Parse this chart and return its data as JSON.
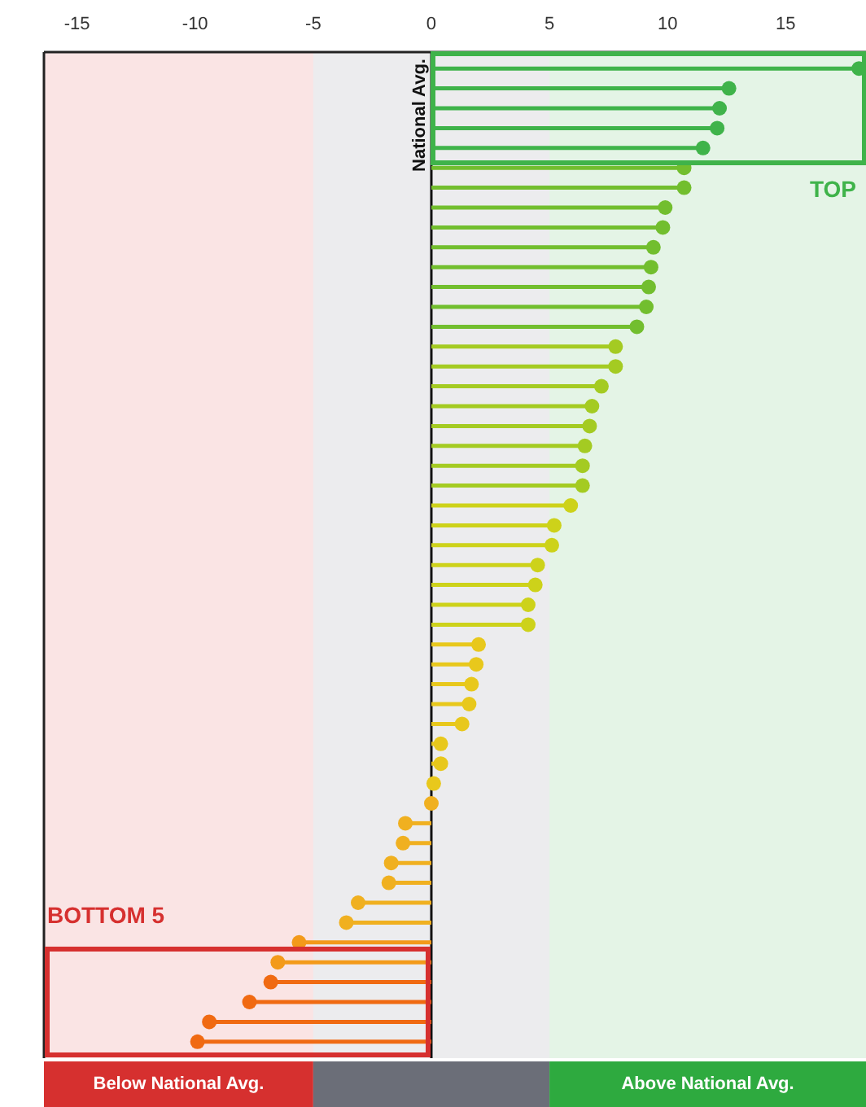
{
  "chart_data": {
    "type": "lollipop",
    "orientation": "horizontal",
    "categories": [
      null,
      null,
      null,
      null,
      null,
      null,
      null,
      null,
      null,
      null,
      null,
      null,
      null,
      null,
      null,
      null,
      null,
      null,
      null,
      null,
      null,
      null,
      null,
      null,
      null,
      null,
      null,
      null,
      null,
      null,
      null,
      null,
      null,
      null,
      null,
      null,
      null,
      null,
      null,
      null,
      null,
      null,
      null,
      null,
      null,
      null,
      null,
      null,
      null,
      null
    ],
    "values": [
      18.1,
      12.6,
      12.2,
      12.1,
      11.5,
      10.7,
      10.7,
      9.9,
      9.8,
      9.4,
      9.3,
      9.2,
      9.1,
      8.7,
      7.8,
      7.8,
      7.2,
      6.8,
      6.7,
      6.5,
      6.4,
      6.4,
      5.9,
      5.2,
      5.1,
      4.5,
      4.4,
      4.1,
      4.1,
      2.0,
      1.9,
      1.7,
      1.6,
      1.3,
      0.4,
      0.4,
      0.1,
      0,
      -1.1,
      -1.2,
      -1.7,
      -1.8,
      -3.1,
      -3.6,
      -5.6,
      -6.5,
      -6.8,
      -7.7,
      -9.4,
      -9.9
    ],
    "colors": [
      "#3fb34a",
      "#3fb34a",
      "#3fb34a",
      "#3fb34a",
      "#3fb34a",
      "#72be2e",
      "#72be2e",
      "#72be2e",
      "#72be2e",
      "#72be2e",
      "#72be2e",
      "#72be2e",
      "#72be2e",
      "#72be2e",
      "#a4cb22",
      "#a4cb22",
      "#a4cb22",
      "#a4cb22",
      "#a4cb22",
      "#a4cb22",
      "#a4cb22",
      "#a4cb22",
      "#cdd21a",
      "#cdd21a",
      "#cdd21a",
      "#cdd21a",
      "#cdd21a",
      "#cdd21a",
      "#cdd21a",
      "#e8c81c",
      "#e8c81c",
      "#e8c81c",
      "#e8c81c",
      "#e8c81c",
      "#e8c81c",
      "#e8c81c",
      "#e8c81c",
      "#f0b020",
      "#f0b020",
      "#f0b020",
      "#f0b020",
      "#f0b020",
      "#f0b020",
      "#f0b020",
      "#f39a1a",
      "#f39a1a",
      "#f06a12",
      "#f06a12",
      "#f06a12",
      "#f06a12"
    ],
    "xlim": [
      -16.4,
      18.4
    ],
    "xticks": [
      -15,
      -10,
      -5,
      0,
      5,
      10,
      15
    ],
    "marker": "circle",
    "grid": false,
    "ref_lines": [
      {
        "axis": "x",
        "value": 0,
        "label": "National Avg.",
        "color": "#111111"
      }
    ],
    "bands": [
      {
        "axis": "x",
        "from": -16.4,
        "to": -5,
        "label": "Below National Avg.",
        "color": "#d6302f"
      },
      {
        "axis": "x",
        "from": -5,
        "to": 5,
        "label": null,
        "color": "#6b6e78"
      },
      {
        "axis": "x",
        "from": 5,
        "to": 18.4,
        "label": "Above National Avg.",
        "color": "#2eaa3f"
      }
    ],
    "annotations": [
      "TOP",
      "BOTTOM 5"
    ]
  }
}
